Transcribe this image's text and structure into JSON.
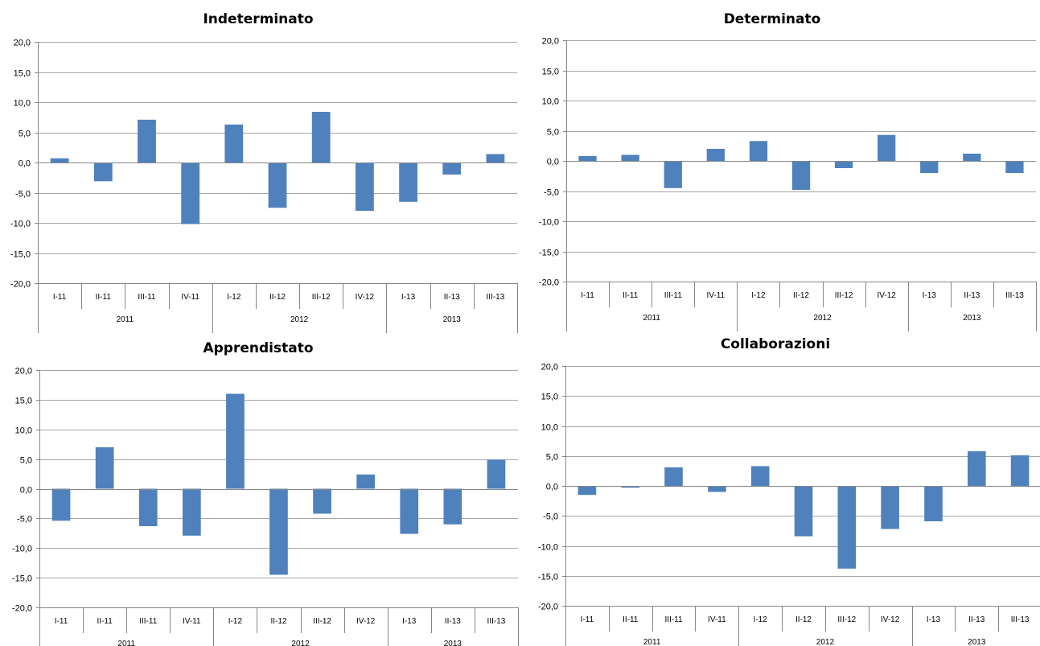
{
  "chart_data": [
    {
      "type": "bar",
      "title": "Indeterminato",
      "categories": [
        "I-11",
        "II-11",
        "III-11",
        "IV-11",
        "I-12",
        "II-12",
        "III-12",
        "IV-12",
        "I-13",
        "II-13",
        "III-13"
      ],
      "groups": [
        {
          "label": "2011",
          "count": 4
        },
        {
          "label": "2012",
          "count": 4
        },
        {
          "label": "2013",
          "count": 3
        }
      ],
      "series": [
        {
          "values": [
            0.7,
            -3.1,
            7.1,
            -10.2,
            6.3,
            -7.5,
            8.4,
            -8.0,
            -6.5,
            -2.0,
            1.4
          ]
        }
      ],
      "ylim": [
        -20,
        20
      ],
      "yticks": [
        "20,0",
        "15,0",
        "10,0",
        "5,0",
        "0,0",
        "-5,0",
        "-10,0",
        "-15,0",
        "-20,0"
      ],
      "grid": true,
      "color": "#4f81bd"
    },
    {
      "type": "bar",
      "title": "Determinato",
      "categories": [
        "I-11",
        "II-11",
        "III-11",
        "IV-11",
        "I-12",
        "II-12",
        "III-12",
        "IV-12",
        "I-13",
        "II-13",
        "III-13"
      ],
      "groups": [
        {
          "label": "2011",
          "count": 4
        },
        {
          "label": "2012",
          "count": 4
        },
        {
          "label": "2013",
          "count": 3
        }
      ],
      "series": [
        {
          "values": [
            0.8,
            1.0,
            -4.5,
            2.0,
            3.3,
            -4.8,
            -1.2,
            4.3,
            -2.0,
            1.2,
            -2.0
          ]
        }
      ],
      "ylim": [
        -20,
        20
      ],
      "yticks": [
        "20,0",
        "15,0",
        "10,0",
        "5,0",
        "0,0",
        "-5,0",
        "-10,0",
        "-15,0",
        "-20,0"
      ],
      "grid": true,
      "color": "#4f81bd"
    },
    {
      "type": "bar",
      "title": "Apprendistato",
      "categories": [
        "I-11",
        "II-11",
        "III-11",
        "IV-11",
        "I-12",
        "II-12",
        "III-12",
        "IV-12",
        "I-13",
        "II-13",
        "III-13"
      ],
      "groups": [
        {
          "label": "2011",
          "count": 4
        },
        {
          "label": "2012",
          "count": 4
        },
        {
          "label": "2013",
          "count": 3
        }
      ],
      "series": [
        {
          "values": [
            -5.4,
            7.0,
            -6.3,
            -7.9,
            16.0,
            -14.5,
            -4.2,
            2.4,
            -7.6,
            -6.0,
            4.9
          ]
        }
      ],
      "ylim": [
        -20,
        20
      ],
      "yticks": [
        "20,0",
        "15,0",
        "10,0",
        "5,0",
        "0,0",
        "-5,0",
        "-10,0",
        "-15,0",
        "-20,0"
      ],
      "grid": true,
      "color": "#4f81bd"
    },
    {
      "type": "bar",
      "title": "Collaborazioni",
      "categories": [
        "I-11",
        "II-11",
        "III-11",
        "IV-11",
        "I-12",
        "II-12",
        "III-12",
        "IV-12",
        "I-13",
        "II-13",
        "III-13"
      ],
      "groups": [
        {
          "label": "2011",
          "count": 4
        },
        {
          "label": "2012",
          "count": 4
        },
        {
          "label": "2013",
          "count": 3
        }
      ],
      "series": [
        {
          "values": [
            -1.5,
            -0.3,
            3.1,
            -1.0,
            3.3,
            -8.4,
            -13.8,
            -7.2,
            -5.9,
            5.8,
            5.1
          ]
        }
      ],
      "ylim": [
        -20,
        20
      ],
      "yticks": [
        "20,0",
        "15,0",
        "10,0",
        "5,0",
        "0,0",
        "-5,0",
        "-10,0",
        "-15,0",
        "-20,0"
      ],
      "grid": true,
      "color": "#4f81bd"
    }
  ]
}
